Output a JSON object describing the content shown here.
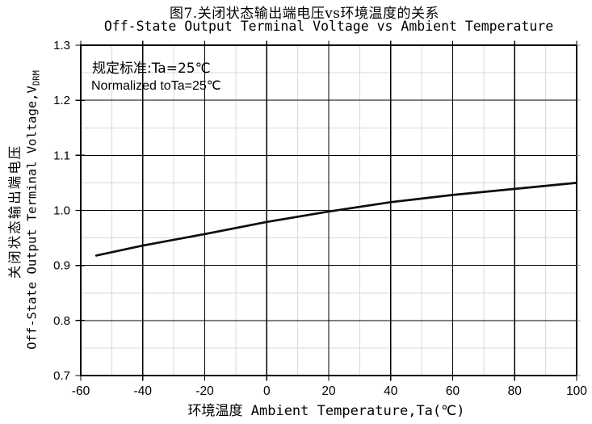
{
  "title": "图7.关闭状态输出端电压vs环境温度的关系",
  "subtitle": "Off-State Output Terminal Voltage vs Ambient Temperature",
  "annotation": {
    "line1": "规定标准:Ta=25℃",
    "line2": "Normalized toTa=25℃"
  },
  "x_axis": {
    "label": "环境温度 Ambient Temperature,Ta(℃)"
  },
  "y_axis": {
    "label_zh": "关闭状态输出端电压",
    "label_en": "Off-State Output Terminal Voltage,V",
    "label_en_sub": "DRM"
  },
  "colors": {
    "background": "#ffffff",
    "text": "#000000",
    "border": "#000000",
    "major_grid": "#000000",
    "minor_grid": "#d9d9d9",
    "right_tick": "#9c9c9c",
    "curve": "#0d0d0d"
  },
  "chart_data": {
    "type": "line",
    "title": "Off-State Output Terminal Voltage vs Ambient Temperature",
    "xlabel": "环境温度 Ambient Temperature,Ta(℃)",
    "ylabel": "Off-State Output Terminal Voltage, VDRM (normalized)",
    "xlim": [
      -60,
      100
    ],
    "ylim": [
      0.7,
      1.3
    ],
    "x_major_step": 20,
    "x_minor_step": 10,
    "y_major_step": 0.1,
    "y_minor_step": 0.05,
    "grid": "major black, minor light gray, boxed plot area",
    "legend": "none",
    "x_tick_labels": [
      "-60",
      "-40",
      "-20",
      "0",
      "20",
      "40",
      "60",
      "80",
      "100"
    ],
    "x_tick_values": [
      -60,
      -40,
      -20,
      0,
      20,
      40,
      60,
      80,
      100
    ],
    "y_tick_labels": [
      "0.7",
      "0.8",
      "0.9",
      "1.0",
      "1.1",
      "1.2",
      "1.3"
    ],
    "y_tick_values": [
      0.7,
      0.8,
      0.9,
      1.0,
      1.1,
      1.2,
      1.3
    ],
    "series": [
      {
        "name": "VDRM normalized to Ta=25C",
        "x": [
          -55,
          -40,
          -20,
          0,
          20,
          40,
          60,
          80,
          100
        ],
        "y": [
          0.918,
          0.936,
          0.957,
          0.979,
          0.998,
          1.015,
          1.028,
          1.039,
          1.05
        ]
      }
    ]
  }
}
